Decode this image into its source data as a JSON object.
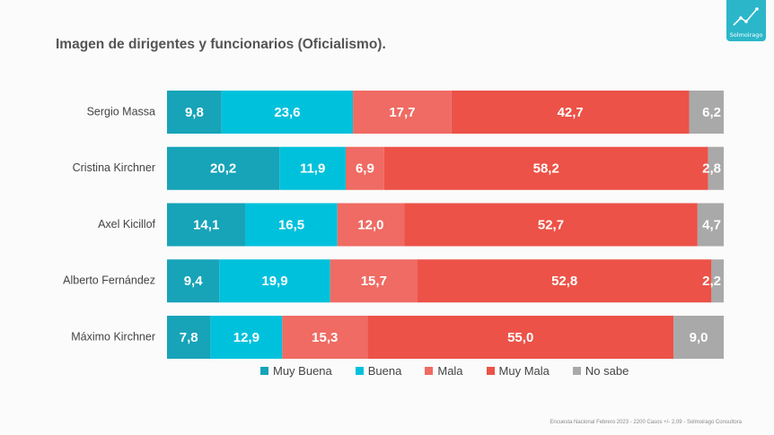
{
  "title": "Imagen de dirigentes y funcionarios (Oficialismo).",
  "logo_text": "Solmoirago",
  "footnote": "Encuesta Nacional Febrero 2023 - 2200 Casos +/- 2,09 - Solmoirago Consultora",
  "colors": {
    "muy_buena": "#17a3b8",
    "buena": "#00c1dc",
    "mala": "#ef6b63",
    "muy_mala": "#ec5247",
    "no_sabe": "#a9a9a9"
  },
  "chart_data": {
    "type": "bar",
    "orientation": "horizontal",
    "stacked": true,
    "percent_total": 100,
    "categories": [
      "Sergio Massa",
      "Cristina Kirchner",
      "Axel Kicillof",
      "Alberto Fernández",
      "Máximo Kirchner"
    ],
    "series": [
      {
        "name": "Muy Buena",
        "color": "#17a3b8",
        "values": [
          9.8,
          20.2,
          14.1,
          9.4,
          7.8
        ],
        "labels": [
          "9,8",
          "20,2",
          "14,1",
          "9,4",
          "7,8"
        ]
      },
      {
        "name": "Buena",
        "color": "#00c1dc",
        "values": [
          23.6,
          11.9,
          16.5,
          19.9,
          12.9
        ],
        "labels": [
          "23,6",
          "11,9",
          "16,5",
          "19,9",
          "12,9"
        ]
      },
      {
        "name": "Mala",
        "color": "#ef6b63",
        "values": [
          17.7,
          6.9,
          12.0,
          15.7,
          15.3
        ],
        "labels": [
          "17,7",
          "6,9",
          "12,0",
          "15,7",
          "15,3"
        ]
      },
      {
        "name": "Muy Mala",
        "color": "#ec5247",
        "values": [
          42.7,
          58.2,
          52.7,
          52.8,
          55.0
        ],
        "labels": [
          "42,7",
          "58,2",
          "52,7",
          "52,8",
          "55,0"
        ]
      },
      {
        "name": "No sabe",
        "color": "#a9a9a9",
        "values": [
          6.2,
          2.8,
          4.7,
          2.2,
          9.0
        ],
        "labels": [
          "6,2",
          "2,8",
          "4,7",
          "2,2",
          "9,0"
        ]
      }
    ],
    "legend_position": "bottom",
    "grid": false
  }
}
